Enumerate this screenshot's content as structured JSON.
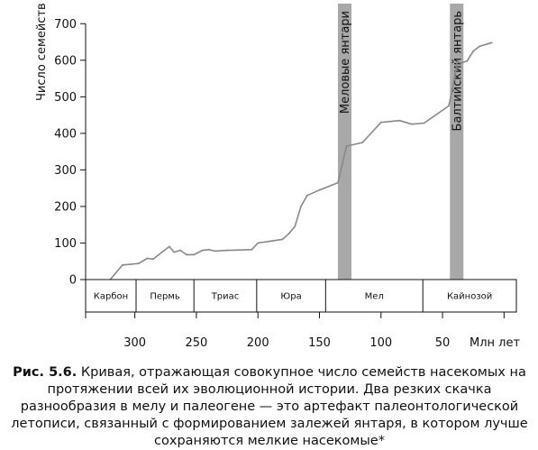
{
  "chart_data": {
    "type": "line",
    "xlabel": "Млн лет",
    "ylabel": "Число семейств",
    "xlim": [
      -10,
      340
    ],
    "ylim": [
      0,
      750
    ],
    "x_reversed": true,
    "x_ticks": [
      300,
      250,
      200,
      150,
      100,
      50
    ],
    "y_ticks": [
      0,
      100,
      200,
      300,
      400,
      500,
      600,
      700
    ],
    "x": [
      320,
      310,
      303,
      297,
      290,
      285,
      278,
      272,
      268,
      263,
      258,
      252,
      245,
      240,
      235,
      225,
      205,
      200,
      190,
      180,
      175,
      170,
      165,
      160,
      150,
      135,
      128,
      115,
      100,
      85,
      75,
      65,
      45,
      42,
      38,
      35,
      30,
      25,
      20,
      10
    ],
    "values": [
      0,
      40,
      42,
      44,
      58,
      56,
      75,
      90,
      75,
      80,
      68,
      68,
      80,
      82,
      78,
      80,
      82,
      100,
      105,
      110,
      125,
      145,
      200,
      230,
      245,
      265,
      365,
      375,
      430,
      435,
      425,
      428,
      475,
      520,
      595,
      592,
      598,
      625,
      638,
      648
    ],
    "line_color": "#888888",
    "bands": [
      {
        "label": "Меловые янтари",
        "from": 135,
        "to": 124,
        "color": "#a8a8a8"
      },
      {
        "label": "Балтийский янтарь",
        "from": 44,
        "to": 33,
        "color": "#a8a8a8"
      }
    ],
    "periods": [
      {
        "label": "Карбон",
        "from": 340,
        "to": 299
      },
      {
        "label": "Пермь",
        "from": 299,
        "to": 252
      },
      {
        "label": "Триас",
        "from": 252,
        "to": 201
      },
      {
        "label": "Юра",
        "from": 201,
        "to": 145
      },
      {
        "label": "Мел",
        "from": 145,
        "to": 66
      },
      {
        "label": "Кайнозой",
        "from": 66,
        "to": -10
      }
    ]
  },
  "caption": {
    "label": "Рис. 5.6.",
    "text": "Кривая, отражающая совокупное число семейств насекомых на протяжении всей их эволюционной истории. Два резких скачка разнообразия в мелу и палеогене — это артефакт палеонтологической летописи, связанный с формированием залежей янтаря, в котором лучше сохраняются мелкие насекомые*"
  }
}
